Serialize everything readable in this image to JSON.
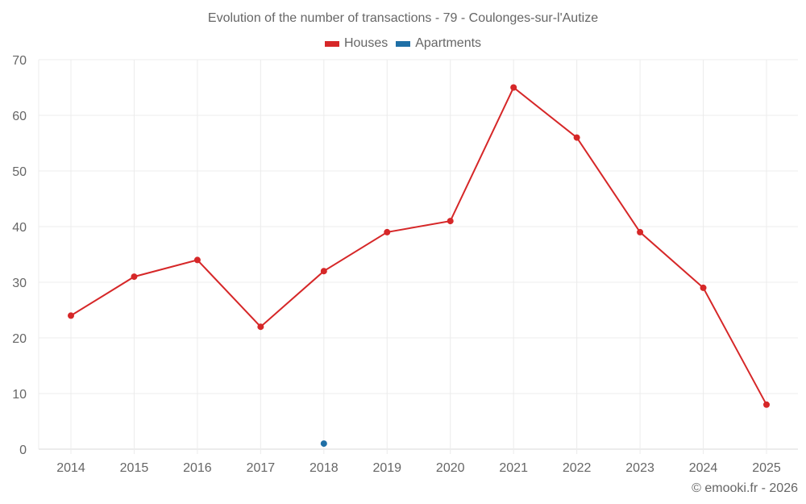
{
  "title": "Evolution of the number of transactions - 79 - Coulonges-sur-l'Autize",
  "legend": [
    {
      "label": "Houses",
      "color": "#d62728"
    },
    {
      "label": "Apartments",
      "color": "#1f6fa6"
    }
  ],
  "credit": "© emooki.fr - 2026",
  "chart_data": {
    "type": "line",
    "title": "Evolution of the number of transactions - 79 - Coulonges-sur-l'Autize",
    "xlabel": "",
    "ylabel": "",
    "categories": [
      "2014",
      "2015",
      "2016",
      "2017",
      "2018",
      "2019",
      "2020",
      "2021",
      "2022",
      "2023",
      "2024",
      "2025"
    ],
    "series": [
      {
        "name": "Houses",
        "color": "#d62728",
        "values": [
          24,
          31,
          34,
          22,
          32,
          39,
          41,
          65,
          56,
          39,
          29,
          8
        ]
      },
      {
        "name": "Apartments",
        "color": "#1f6fa6",
        "values": [
          null,
          null,
          null,
          null,
          1,
          null,
          null,
          null,
          null,
          null,
          null,
          null
        ]
      }
    ],
    "ylim": [
      0,
      70
    ],
    "yticks": [
      0,
      10,
      20,
      30,
      40,
      50,
      60,
      70
    ],
    "grid": true,
    "legend_position": "top"
  }
}
